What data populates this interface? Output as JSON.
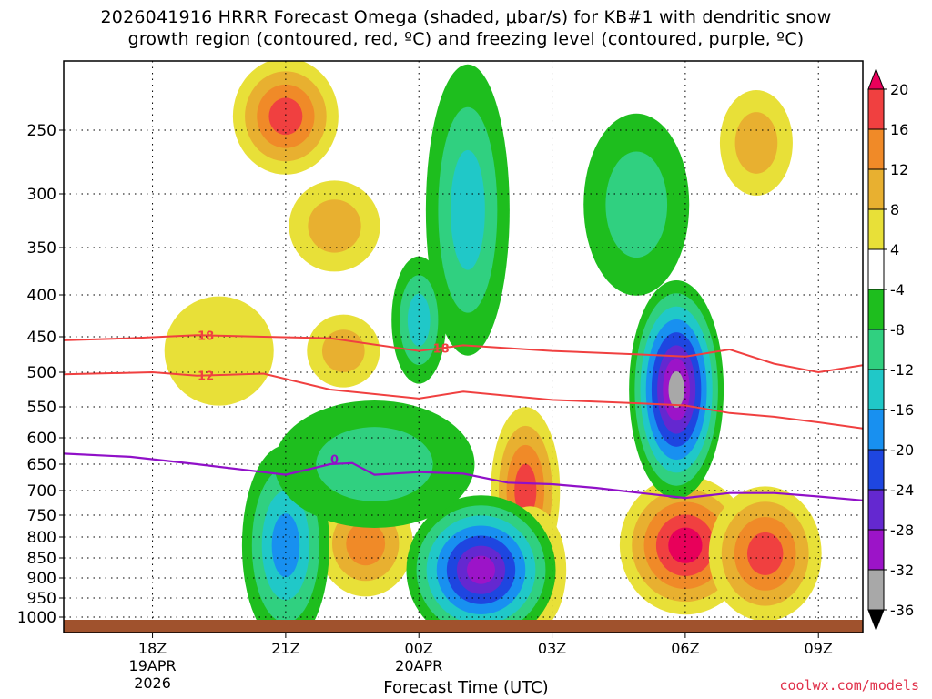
{
  "title": {
    "line1": "2026041916 HRRR Forecast Omega (shaded, μbar/s) for KB#1 with dendritic snow",
    "line2": "growth region (contoured, red, ºC) and freezing level (contoured, purple, ºC)"
  },
  "xlabel": "Forecast Time (UTC)",
  "credit": "coolwx.com/models",
  "chart_data": {
    "type": "heatmap",
    "x_ticks": [
      {
        "hour": 18,
        "label": [
          "18Z",
          "19APR",
          "2026"
        ]
      },
      {
        "hour": 21,
        "label": [
          "21Z"
        ]
      },
      {
        "hour": 24,
        "label": [
          "00Z",
          "20APR"
        ]
      },
      {
        "hour": 27,
        "label": [
          "03Z"
        ]
      },
      {
        "hour": 30,
        "label": [
          "06Z"
        ]
      },
      {
        "hour": 33,
        "label": [
          "09Z"
        ]
      }
    ],
    "xlim": [
      16,
      34
    ],
    "y_ticks": [
      250,
      300,
      350,
      400,
      450,
      500,
      550,
      600,
      650,
      700,
      750,
      800,
      850,
      900,
      950,
      1000
    ],
    "ylim": [
      1013,
      200
    ],
    "grid": true,
    "colorbar": {
      "levels": [
        20,
        16,
        12,
        8,
        4,
        -4,
        -8,
        -12,
        -16,
        -20,
        -24,
        -28,
        -32,
        -36
      ],
      "colors": [
        "#e8005a",
        "#f04040",
        "#f08a28",
        "#e8b030",
        "#e8e038",
        "#ffffff",
        "#1ebe1e",
        "#30d080",
        "#20c8c8",
        "#1890f0",
        "#1e46e0",
        "#6428d0",
        "#9c14c8",
        "#a8a8a8",
        "#000000"
      ]
    },
    "dgz_contours": [
      {
        "label": "18",
        "color": "#f04040",
        "points": [
          [
            16,
            455
          ],
          [
            17.5,
            452
          ],
          [
            19,
            448
          ],
          [
            20.5,
            450
          ],
          [
            22,
            452
          ],
          [
            24,
            470
          ],
          [
            25,
            462
          ],
          [
            27,
            470
          ],
          [
            29,
            475
          ],
          [
            30,
            478
          ],
          [
            31,
            468
          ],
          [
            32,
            488
          ],
          [
            33,
            500
          ],
          [
            34,
            490
          ]
        ]
      },
      {
        "label": "12",
        "color": "#f04040",
        "points": [
          [
            16,
            503
          ],
          [
            18,
            500
          ],
          [
            19,
            505
          ],
          [
            20.5,
            502
          ],
          [
            22,
            525
          ],
          [
            24,
            538
          ],
          [
            25,
            528
          ],
          [
            27,
            540
          ],
          [
            29,
            545
          ],
          [
            30,
            548
          ],
          [
            31,
            560
          ],
          [
            32,
            566
          ],
          [
            33,
            575
          ],
          [
            34,
            585
          ]
        ]
      }
    ],
    "freezing_level": {
      "label": "0",
      "color": "#9010c8",
      "points": [
        [
          16,
          630
        ],
        [
          17.5,
          636
        ],
        [
          19,
          650
        ],
        [
          20,
          660
        ],
        [
          21,
          670
        ],
        [
          22,
          650
        ],
        [
          22.5,
          648
        ],
        [
          23,
          670
        ],
        [
          24,
          665
        ],
        [
          25,
          668
        ],
        [
          26,
          685
        ],
        [
          27,
          688
        ],
        [
          28,
          695
        ],
        [
          29,
          705
        ],
        [
          30,
          715
        ],
        [
          31,
          705
        ],
        [
          32,
          705
        ],
        [
          33,
          712
        ],
        [
          34,
          720
        ]
      ]
    },
    "omega_cells": [
      {
        "t": 21.0,
        "p": 240,
        "value": 18
      },
      {
        "t": 22.1,
        "p": 330,
        "value": 11
      },
      {
        "t": 22.3,
        "p": 470,
        "value": 10
      },
      {
        "t": 19.5,
        "p": 470,
        "value": 5
      },
      {
        "t": 22.8,
        "p": 816,
        "value": 15
      },
      {
        "t": 26.4,
        "p": 700,
        "value": 18
      },
      {
        "t": 26.5,
        "p": 880,
        "value": 14
      },
      {
        "t": 30.0,
        "p": 820,
        "value": 20
      },
      {
        "t": 31.8,
        "p": 840,
        "value": 18
      },
      {
        "t": 31.6,
        "p": 260,
        "value": 9
      },
      {
        "t": 25.1,
        "p": 315,
        "value": -14
      },
      {
        "t": 25.4,
        "p": 880,
        "value": -28
      },
      {
        "t": 21.0,
        "p": 820,
        "value": -16
      },
      {
        "t": 23.0,
        "p": 650,
        "value": -9
      },
      {
        "t": 28.9,
        "p": 310,
        "value": -11
      },
      {
        "t": 29.8,
        "p": 525,
        "value": -34
      },
      {
        "t": 24.0,
        "p": 430,
        "value": -15
      }
    ]
  }
}
